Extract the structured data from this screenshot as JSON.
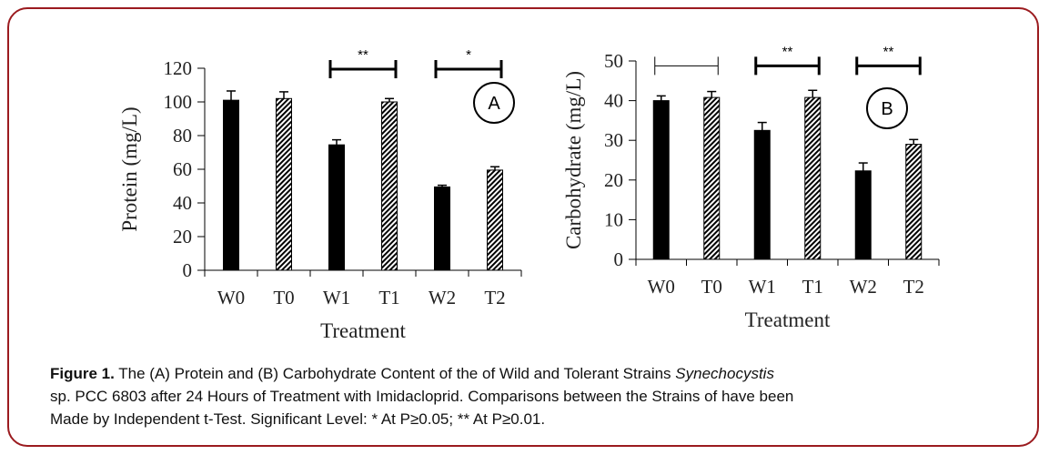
{
  "chart_data": [
    {
      "type": "bar",
      "panel_label": "A",
      "ylabel": "Protein (mg/L)",
      "xlabel": "Treatment",
      "categories": [
        "W0",
        "T0",
        "W1",
        "T1",
        "W2",
        "T2"
      ],
      "values": [
        101,
        102,
        74.5,
        100,
        49.5,
        59.5
      ],
      "errors": [
        5.5,
        4,
        3,
        2,
        1,
        2
      ],
      "fills": [
        "solid",
        "hatched",
        "solid",
        "hatched",
        "solid",
        "hatched"
      ],
      "ylim": [
        0,
        120
      ],
      "yticks": [
        0,
        20,
        40,
        60,
        80,
        100,
        120
      ],
      "grid": false,
      "significance": [
        {
          "from": "W1",
          "to": "T1",
          "label": "**",
          "thick": true,
          "y": 120
        },
        {
          "from": "W2",
          "to": "T2",
          "label": "*",
          "thick": true,
          "y": 120
        }
      ]
    },
    {
      "type": "bar",
      "panel_label": "B",
      "ylabel": "Carbohydrate (mg/L)",
      "xlabel": "Treatment",
      "categories": [
        "W0",
        "T0",
        "W1",
        "T1",
        "W2",
        "T2"
      ],
      "values": [
        40,
        40.8,
        32.5,
        40.8,
        22.3,
        29
      ],
      "errors": [
        1.2,
        1.5,
        2,
        1.8,
        2,
        1.2
      ],
      "fills": [
        "solid",
        "hatched",
        "solid",
        "hatched",
        "solid",
        "hatched"
      ],
      "ylim": [
        0,
        50
      ],
      "yticks": [
        0,
        10,
        20,
        30,
        40,
        50
      ],
      "grid": false,
      "significance": [
        {
          "from": "W0",
          "to": "T0",
          "label": "",
          "thick": false,
          "y": 49
        },
        {
          "from": "W1",
          "to": "T1",
          "label": "**",
          "thick": true,
          "y": 49
        },
        {
          "from": "W2",
          "to": "T2",
          "label": "**",
          "thick": true,
          "y": 49
        }
      ]
    }
  ],
  "colors": {
    "border": "#9b1b1f",
    "bar": "#000000"
  },
  "caption": {
    "label": "Figure 1.",
    "line1_a": " The (A) Protein and (B) Carbohydrate Content of the of Wild and Tolerant Strains ",
    "line1_italic": "Synechocystis",
    "line2": "sp. PCC 6803 after 24 Hours of Treatment with Imidacloprid. Comparisons between the Strains of have been",
    "line3": "Made by Independent t-Test. Significant Level: * At P≥0.05; ** At P≥0.01."
  }
}
